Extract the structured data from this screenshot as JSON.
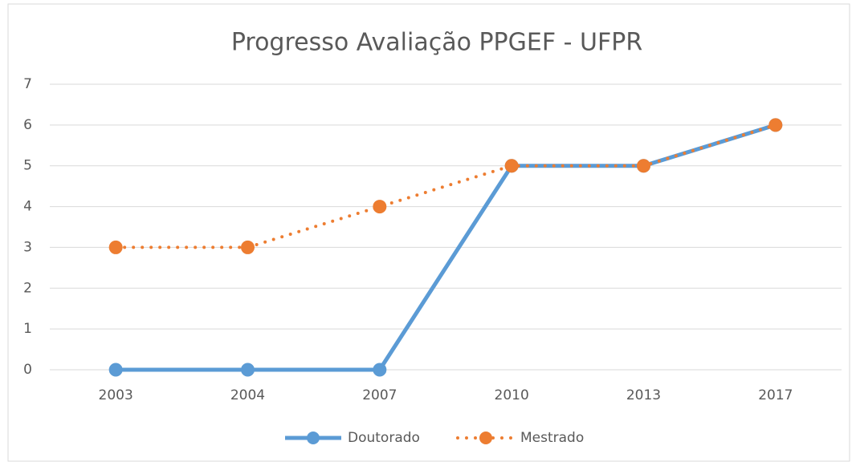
{
  "chart_data": {
    "type": "line",
    "title": "Progresso Avaliação PPGEF - UFPR",
    "categories": [
      "2003",
      "2004",
      "2007",
      "2010",
      "2013",
      "2017"
    ],
    "series": [
      {
        "name": "Doutorado",
        "color": "#5b9bd5",
        "values": [
          0,
          0,
          0,
          5,
          5,
          6
        ]
      },
      {
        "name": "Mestrado",
        "color": "#ed7d31",
        "values": [
          3,
          3,
          4,
          5,
          5,
          6
        ]
      }
    ],
    "ylim": [
      0,
      7
    ],
    "yticks": [
      0,
      1,
      2,
      3,
      4,
      5,
      6,
      7
    ],
    "grid": true,
    "legend": "bottom"
  }
}
